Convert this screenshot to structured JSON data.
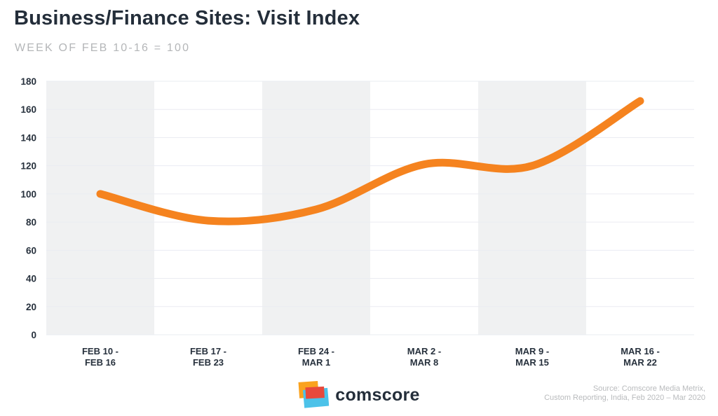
{
  "header": {
    "title": "Business/Finance Sites: Visit Index",
    "subtitle": "WEEK OF FEB 10-16 = 100"
  },
  "chart_data": {
    "type": "line",
    "title": "Business/Finance Sites: Visit Index",
    "subtitle": "WEEK OF FEB 10-16 = 100",
    "series_name": "Visit Index",
    "categories": [
      [
        "FEB 10 -",
        "FEB 16"
      ],
      [
        "FEB 17 -",
        "FEB 23"
      ],
      [
        "FEB 24 -",
        "MAR 1"
      ],
      [
        "MAR 2 -",
        "MAR 8"
      ],
      [
        "MAR 9 -",
        "MAR 15"
      ],
      [
        "MAR 16 -",
        "MAR 22"
      ]
    ],
    "values": [
      100,
      81,
      89,
      121,
      120,
      166
    ],
    "ylim": [
      0,
      180
    ],
    "yticks": [
      0,
      20,
      40,
      60,
      80,
      100,
      120,
      140,
      160,
      180
    ],
    "xlabel": "",
    "ylabel": "",
    "grid": "horizontal gridlines every 20, alternating light-gray vertical bands",
    "legend": "none",
    "line_color": "#F5831F",
    "band_color": "#F0F1F2"
  },
  "footer": {
    "logo_text": "comscore",
    "source_line1": "Source: Comscore Media Metrix,",
    "source_line2": "Custom Reporting, India, Feb 2020 – Mar 2020"
  },
  "colors": {
    "title": "#242E3A",
    "subtitle": "#B4B6B8",
    "axis_label": "#27313D",
    "gridline": "#EAECF2",
    "band": "#F0F1F2",
    "line": "#F5831F",
    "source": "#B9BBBD",
    "logo_yellow": "#FAA21E",
    "logo_red": "#E8493C",
    "logo_blue": "#4CC2E9"
  }
}
